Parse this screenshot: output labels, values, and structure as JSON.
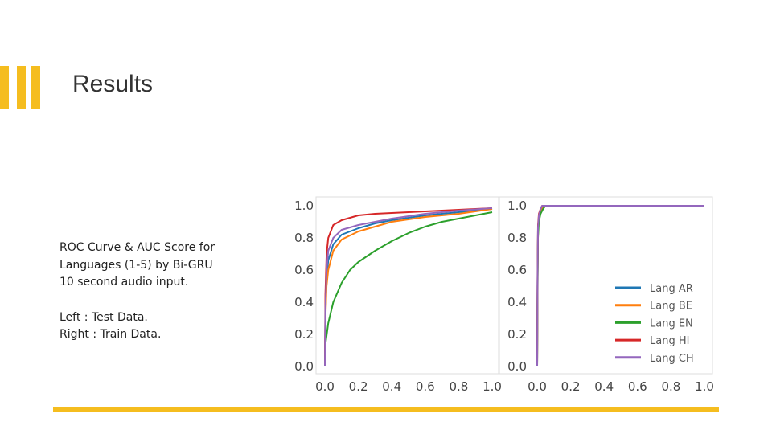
{
  "slide": {
    "title": "Results",
    "caption_lines": [
      "ROC Curve & AUC Score for",
      "Languages (1-5) by Bi-GRU",
      "10 second audio input."
    ],
    "note_lines": [
      "Left : Test Data.",
      "Right : Train Data."
    ],
    "accent_color": "#f5bd1f"
  },
  "chart_data": [
    {
      "type": "line",
      "panel": "left",
      "xlim": [
        0,
        1
      ],
      "ylim": [
        0,
        1
      ],
      "x_ticks": [
        "0.0",
        "0.2",
        "0.4",
        "0.6",
        "0.8",
        "1.0"
      ],
      "y_ticks": [
        "0.0",
        "0.2",
        "0.4",
        "0.6",
        "0.8",
        "1.0"
      ],
      "grid": false,
      "series": [
        {
          "name": "Lang AR",
          "color": "#1f77b4",
          "points": [
            [
              0,
              0
            ],
            [
              0.003,
              0.3
            ],
            [
              0.01,
              0.55
            ],
            [
              0.02,
              0.66
            ],
            [
              0.05,
              0.76
            ],
            [
              0.1,
              0.82
            ],
            [
              0.2,
              0.86
            ],
            [
              0.3,
              0.89
            ],
            [
              0.4,
              0.91
            ],
            [
              0.6,
              0.94
            ],
            [
              0.8,
              0.96
            ],
            [
              1,
              0.98
            ]
          ]
        },
        {
          "name": "Lang BE",
          "color": "#ff7f0e",
          "points": [
            [
              0,
              0
            ],
            [
              0.003,
              0.28
            ],
            [
              0.01,
              0.5
            ],
            [
              0.02,
              0.6
            ],
            [
              0.05,
              0.72
            ],
            [
              0.1,
              0.79
            ],
            [
              0.2,
              0.84
            ],
            [
              0.3,
              0.87
            ],
            [
              0.4,
              0.9
            ],
            [
              0.6,
              0.93
            ],
            [
              0.8,
              0.95
            ],
            [
              1,
              0.98
            ]
          ]
        },
        {
          "name": "Lang EN",
          "color": "#2ca02c",
          "points": [
            [
              0,
              0
            ],
            [
              0.005,
              0.15
            ],
            [
              0.02,
              0.27
            ],
            [
              0.05,
              0.4
            ],
            [
              0.1,
              0.52
            ],
            [
              0.15,
              0.6
            ],
            [
              0.2,
              0.65
            ],
            [
              0.3,
              0.72
            ],
            [
              0.4,
              0.78
            ],
            [
              0.5,
              0.83
            ],
            [
              0.6,
              0.87
            ],
            [
              0.7,
              0.9
            ],
            [
              0.8,
              0.92
            ],
            [
              0.9,
              0.94
            ],
            [
              1,
              0.96
            ]
          ]
        },
        {
          "name": "Lang HI",
          "color": "#d62728",
          "points": [
            [
              0,
              0
            ],
            [
              0.003,
              0.45
            ],
            [
              0.01,
              0.7
            ],
            [
              0.02,
              0.8
            ],
            [
              0.05,
              0.88
            ],
            [
              0.1,
              0.91
            ],
            [
              0.2,
              0.94
            ],
            [
              0.3,
              0.95
            ],
            [
              0.5,
              0.96
            ],
            [
              0.7,
              0.97
            ],
            [
              1,
              0.985
            ]
          ]
        },
        {
          "name": "Lang CH",
          "color": "#9467bd",
          "points": [
            [
              0,
              0
            ],
            [
              0.003,
              0.35
            ],
            [
              0.01,
              0.6
            ],
            [
              0.02,
              0.72
            ],
            [
              0.05,
              0.8
            ],
            [
              0.1,
              0.85
            ],
            [
              0.2,
              0.88
            ],
            [
              0.3,
              0.9
            ],
            [
              0.4,
              0.92
            ],
            [
              0.6,
              0.95
            ],
            [
              0.8,
              0.97
            ],
            [
              1,
              0.985
            ]
          ]
        }
      ]
    },
    {
      "type": "line",
      "panel": "right",
      "xlim": [
        0,
        1
      ],
      "ylim": [
        0,
        1
      ],
      "x_ticks": [
        "0.0",
        "0.2",
        "0.4",
        "0.6",
        "0.8",
        "1.0"
      ],
      "y_ticks": [
        "0.0",
        "0.2",
        "0.4",
        "0.6",
        "0.8",
        "1.0"
      ],
      "grid": false,
      "legend": {
        "placement": "lower-right",
        "entries": [
          {
            "label": "Lang AR",
            "color": "#1f77b4"
          },
          {
            "label": "Lang BE",
            "color": "#ff7f0e"
          },
          {
            "label": "Lang EN",
            "color": "#2ca02c"
          },
          {
            "label": "Lang HI",
            "color": "#d62728"
          },
          {
            "label": "Lang CH",
            "color": "#9467bd"
          }
        ]
      },
      "series": [
        {
          "name": "Lang AR",
          "color": "#1f77b4",
          "points": [
            [
              0,
              0
            ],
            [
              0.002,
              0.5
            ],
            [
              0.005,
              0.85
            ],
            [
              0.01,
              0.93
            ],
            [
              0.02,
              0.97
            ],
            [
              0.03,
              0.99
            ],
            [
              0.04,
              1
            ],
            [
              1,
              1
            ]
          ]
        },
        {
          "name": "Lang BE",
          "color": "#ff7f0e",
          "points": [
            [
              0,
              0
            ],
            [
              0.002,
              0.45
            ],
            [
              0.005,
              0.82
            ],
            [
              0.01,
              0.92
            ],
            [
              0.02,
              0.96
            ],
            [
              0.035,
              0.99
            ],
            [
              0.05,
              1
            ],
            [
              1,
              1
            ]
          ]
        },
        {
          "name": "Lang EN",
          "color": "#2ca02c",
          "points": [
            [
              0,
              0
            ],
            [
              0.002,
              0.4
            ],
            [
              0.005,
              0.8
            ],
            [
              0.01,
              0.9
            ],
            [
              0.02,
              0.95
            ],
            [
              0.035,
              0.98
            ],
            [
              0.05,
              1
            ],
            [
              1,
              1
            ]
          ]
        },
        {
          "name": "Lang HI",
          "color": "#d62728",
          "points": [
            [
              0,
              0
            ],
            [
              0.002,
              0.55
            ],
            [
              0.005,
              0.88
            ],
            [
              0.01,
              0.95
            ],
            [
              0.02,
              0.98
            ],
            [
              0.03,
              1
            ],
            [
              1,
              1
            ]
          ]
        },
        {
          "name": "Lang CH",
          "color": "#9467bd",
          "points": [
            [
              0,
              0
            ],
            [
              0.002,
              0.5
            ],
            [
              0.005,
              0.86
            ],
            [
              0.01,
              0.94
            ],
            [
              0.02,
              0.98
            ],
            [
              0.03,
              1
            ],
            [
              1,
              1
            ]
          ]
        }
      ]
    }
  ]
}
